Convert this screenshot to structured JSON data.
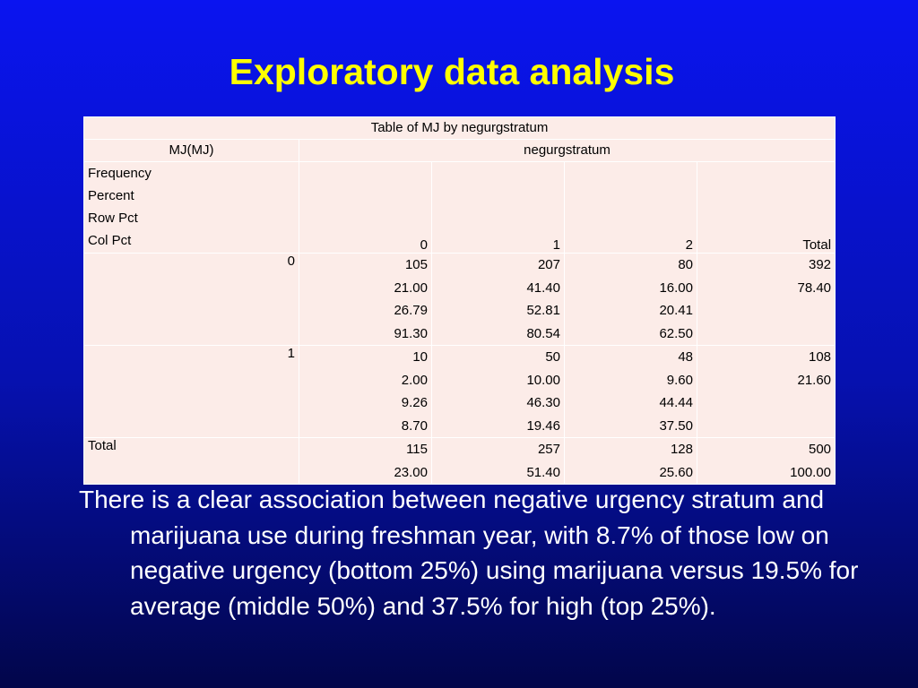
{
  "slide": {
    "title": "Exploratory data analysis",
    "body": "There is a clear association between negative urgency stratum and marijuana use during freshman year, with 8.7% of those low on negative urgency (bottom 25%) using marijuana versus 19.5% for average (middle 50%) and 37.5% for high (top 25%)."
  },
  "colors": {
    "background": "#0a14f0",
    "title": "#ffff00",
    "table_background": "#fcece8",
    "body_text": "#ffffff"
  },
  "table": {
    "title": "Table of MJ by negurgstratum",
    "row_var": "MJ(MJ)",
    "col_var": "negurgstratum",
    "stat_labels": [
      "Frequency",
      "Percent",
      "Row Pct",
      "Col Pct"
    ],
    "col_headers": [
      "0",
      "1",
      "2",
      "Total"
    ],
    "rows": [
      {
        "label": "0",
        "cells": [
          [
            "105",
            "21.00",
            "26.79",
            "91.30"
          ],
          [
            "207",
            "41.40",
            "52.81",
            "80.54"
          ],
          [
            "80",
            "16.00",
            "20.41",
            "62.50"
          ],
          [
            "392",
            "78.40",
            "",
            ""
          ]
        ]
      },
      {
        "label": "1",
        "cells": [
          [
            "10",
            "2.00",
            "9.26",
            "8.70"
          ],
          [
            "50",
            "10.00",
            "46.30",
            "19.46"
          ],
          [
            "48",
            "9.60",
            "44.44",
            "37.50"
          ],
          [
            "108",
            "21.60",
            "",
            ""
          ]
        ]
      }
    ],
    "total": {
      "label": "Total",
      "cells": [
        [
          "115",
          "23.00"
        ],
        [
          "257",
          "51.40"
        ],
        [
          "128",
          "25.60"
        ],
        [
          "500",
          "100.00"
        ]
      ]
    }
  }
}
